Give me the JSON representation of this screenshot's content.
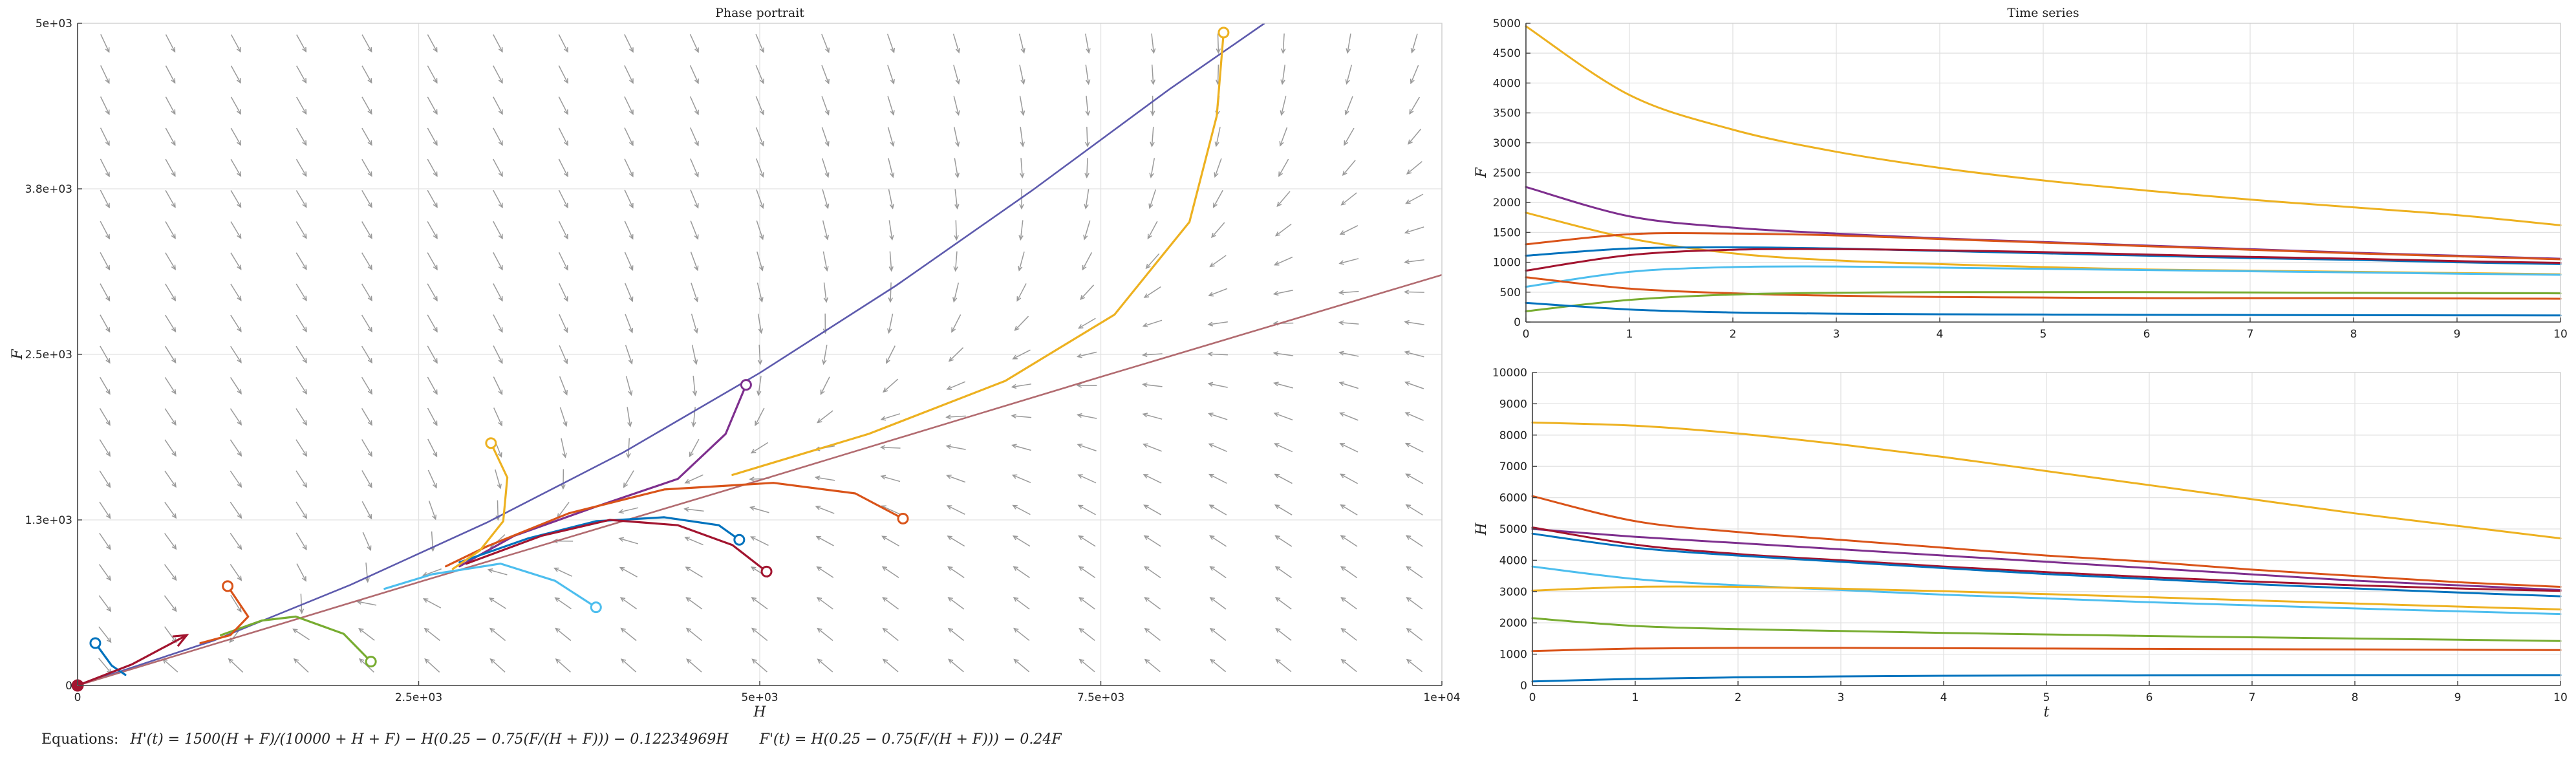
{
  "equations": {
    "label": "Equations:",
    "h_prime": "H'(t) = 1500(H + F)/(10000 + H + F) − H(0.25 − 0.75(F/(H + F))) − 0.12234969H",
    "f_prime": "F'(t) = H(0.25 − 0.75(F/(H + F))) − 0.24F"
  },
  "colors": {
    "blue": "#0072BD",
    "orange": "#D95319",
    "yellow": "#EDB120",
    "purple": "#7E2F8E",
    "green": "#77AC30",
    "cyan": "#4DBEEE",
    "darkred": "#A2142F",
    "nullcline_h": "#5d5aad",
    "nullcline_f": "#b26b70",
    "arrows": "#9a9a9a"
  },
  "chart_data": [
    {
      "type": "line",
      "title": "Phase portrait",
      "xlabel": "H",
      "ylabel": "F",
      "xlim": [
        0,
        10000
      ],
      "ylim": [
        0,
        5000
      ],
      "x_ticks": [
        "0",
        "2.5e+03",
        "5e+03",
        "7.5e+03",
        "1e+04"
      ],
      "y_ticks": [
        "0",
        "1.3e+03",
        "2.5e+03",
        "3.8e+03",
        "5e+03"
      ],
      "grid": true,
      "vector_field": true,
      "nullclines": [
        {
          "color": "nullcline_h",
          "points": [
            [
              0,
              0
            ],
            [
              1000,
              340
            ],
            [
              2000,
              760
            ],
            [
              3000,
              1230
            ],
            [
              4000,
              1760
            ],
            [
              5000,
              2360
            ],
            [
              6000,
              3020
            ],
            [
              7000,
              3740
            ],
            [
              8000,
              4500
            ],
            [
              8700,
              5000
            ]
          ]
        },
        {
          "color": "nullcline_f",
          "points": [
            [
              0,
              0
            ],
            [
              2500,
              780
            ],
            [
              5000,
              1550
            ],
            [
              7500,
              2330
            ],
            [
              10000,
              3100
            ]
          ]
        }
      ],
      "trajectories": [
        {
          "color": "yellow",
          "start": [
            8400,
            4930
          ],
          "points": [
            [
              8400,
              4930
            ],
            [
              8350,
              4300
            ],
            [
              8150,
              3500
            ],
            [
              7600,
              2800
            ],
            [
              6800,
              2300
            ],
            [
              5800,
              1900
            ],
            [
              4800,
              1590
            ]
          ]
        },
        {
          "color": "purple",
          "start": [
            4900,
            2270
          ],
          "points": [
            [
              4900,
              2270
            ],
            [
              4750,
              1900
            ],
            [
              4400,
              1560
            ],
            [
              3800,
              1350
            ],
            [
              3200,
              1130
            ],
            [
              2800,
              900
            ]
          ]
        },
        {
          "color": "orange",
          "start": [
            6050,
            1260
          ],
          "points": [
            [
              6050,
              1260
            ],
            [
              5700,
              1450
            ],
            [
              5100,
              1530
            ],
            [
              4300,
              1480
            ],
            [
              3600,
              1300
            ],
            [
              3000,
              1050
            ],
            [
              2700,
              900
            ]
          ]
        },
        {
          "color": "blue",
          "start": [
            4850,
            1100
          ],
          "points": [
            [
              4850,
              1100
            ],
            [
              4700,
              1210
            ],
            [
              4300,
              1270
            ],
            [
              3800,
              1240
            ],
            [
              3300,
              1110
            ],
            [
              2800,
              930
            ]
          ]
        },
        {
          "color": "darkred",
          "start": [
            5050,
            860
          ],
          "points": [
            [
              5050,
              860
            ],
            [
              4800,
              1060
            ],
            [
              4400,
              1210
            ],
            [
              3900,
              1250
            ],
            [
              3400,
              1130
            ],
            [
              2850,
              920
            ]
          ]
        },
        {
          "color": "yellow",
          "start": [
            3030,
            1830
          ],
          "points": [
            [
              3030,
              1830
            ],
            [
              3150,
              1570
            ],
            [
              3120,
              1240
            ],
            [
              2950,
              1020
            ],
            [
              2750,
              880
            ]
          ]
        },
        {
          "color": "cyan",
          "start": [
            3800,
            590
          ],
          "points": [
            [
              3800,
              590
            ],
            [
              3500,
              790
            ],
            [
              3100,
              920
            ],
            [
              2600,
              840
            ],
            [
              2250,
              730
            ]
          ]
        },
        {
          "color": "green",
          "start": [
            2150,
            180
          ],
          "points": [
            [
              2150,
              180
            ],
            [
              1950,
              390
            ],
            [
              1600,
              520
            ],
            [
              1350,
              490
            ],
            [
              1050,
              380
            ]
          ]
        },
        {
          "color": "orange",
          "start": [
            1100,
            750
          ],
          "points": [
            [
              1100,
              750
            ],
            [
              1250,
              520
            ],
            [
              1120,
              380
            ],
            [
              900,
              320
            ]
          ]
        },
        {
          "color": "blue",
          "start": [
            130,
            320
          ],
          "points": [
            [
              130,
              320
            ],
            [
              250,
              150
            ],
            [
              350,
              80
            ]
          ]
        },
        {
          "color": "darkred",
          "start": [
            0,
            0
          ],
          "points": [
            [
              0,
              0
            ],
            [
              400,
              160
            ],
            [
              800,
              380
            ]
          ],
          "arrow": true
        }
      ]
    },
    {
      "type": "line",
      "title": "Time series",
      "xlabel": "",
      "ylabel": "F",
      "xlim": [
        0,
        10
      ],
      "ylim": [
        0,
        5000
      ],
      "x_ticks": [
        "0",
        "1",
        "2",
        "3",
        "4",
        "5",
        "6",
        "7",
        "8",
        "9",
        "10"
      ],
      "y_ticks": [
        "0",
        "500",
        "1000",
        "1500",
        "2000",
        "2500",
        "3000",
        "3500",
        "4000",
        "4500",
        "5000"
      ],
      "x": [
        0,
        1,
        2,
        3,
        4,
        5,
        6,
        7,
        8,
        9,
        10
      ],
      "series": [
        {
          "color": "yellow",
          "values": [
            4950,
            3800,
            3220,
            2850,
            2580,
            2370,
            2200,
            2050,
            1920,
            1790,
            1620
          ]
        },
        {
          "color": "purple",
          "values": [
            2260,
            1770,
            1580,
            1480,
            1400,
            1340,
            1280,
            1220,
            1160,
            1110,
            1060
          ]
        },
        {
          "color": "yellow",
          "values": [
            1830,
            1400,
            1150,
            1030,
            970,
            920,
            880,
            860,
            840,
            820,
            800
          ]
        },
        {
          "color": "orange",
          "values": [
            1300,
            1470,
            1480,
            1450,
            1390,
            1330,
            1270,
            1210,
            1150,
            1100,
            1050
          ]
        },
        {
          "color": "blue",
          "values": [
            1110,
            1230,
            1250,
            1230,
            1190,
            1150,
            1110,
            1070,
            1040,
            1000,
            970
          ]
        },
        {
          "color": "darkred",
          "values": [
            860,
            1120,
            1210,
            1220,
            1200,
            1170,
            1130,
            1090,
            1060,
            1020,
            990
          ]
        },
        {
          "color": "cyan",
          "values": [
            590,
            840,
            920,
            930,
            910,
            890,
            870,
            850,
            830,
            810,
            790
          ]
        },
        {
          "color": "orange",
          "values": [
            750,
            560,
            480,
            440,
            420,
            410,
            400,
            400,
            400,
            395,
            390
          ]
        },
        {
          "color": "green",
          "values": [
            180,
            370,
            460,
            490,
            500,
            500,
            500,
            495,
            490,
            485,
            480
          ]
        },
        {
          "color": "blue",
          "values": [
            320,
            210,
            160,
            140,
            130,
            125,
            120,
            118,
            115,
            113,
            110
          ]
        }
      ]
    },
    {
      "type": "line",
      "title": "",
      "xlabel": "t",
      "ylabel": "H",
      "xlim": [
        0,
        10
      ],
      "ylim": [
        0,
        10000
      ],
      "x_ticks": [
        "0",
        "1",
        "2",
        "3",
        "4",
        "5",
        "6",
        "7",
        "8",
        "9",
        "10"
      ],
      "y_ticks": [
        "0",
        "1000",
        "2000",
        "3000",
        "4000",
        "5000",
        "6000",
        "7000",
        "8000",
        "9000",
        "10000"
      ],
      "x": [
        0,
        1,
        2,
        3,
        4,
        5,
        6,
        7,
        8,
        9,
        10
      ],
      "series": [
        {
          "color": "yellow",
          "values": [
            8400,
            8300,
            8050,
            7700,
            7300,
            6850,
            6400,
            5950,
            5500,
            5100,
            4700
          ]
        },
        {
          "color": "orange",
          "values": [
            6050,
            5250,
            4900,
            4650,
            4400,
            4150,
            3950,
            3700,
            3500,
            3300,
            3150
          ]
        },
        {
          "color": "purple",
          "values": [
            5000,
            4750,
            4550,
            4350,
            4150,
            3950,
            3750,
            3550,
            3350,
            3200,
            3050
          ]
        },
        {
          "color": "darkred",
          "values": [
            5050,
            4500,
            4200,
            4000,
            3800,
            3620,
            3460,
            3320,
            3200,
            3100,
            3020
          ]
        },
        {
          "color": "blue",
          "values": [
            4850,
            4400,
            4150,
            3950,
            3750,
            3560,
            3400,
            3240,
            3100,
            2970,
            2850
          ]
        },
        {
          "color": "cyan",
          "values": [
            3800,
            3400,
            3200,
            3050,
            2900,
            2780,
            2660,
            2560,
            2460,
            2370,
            2280
          ]
        },
        {
          "color": "yellow",
          "values": [
            3030,
            3150,
            3150,
            3090,
            3010,
            2920,
            2820,
            2720,
            2620,
            2520,
            2430
          ]
        },
        {
          "color": "green",
          "values": [
            2150,
            1900,
            1800,
            1740,
            1680,
            1630,
            1580,
            1540,
            1500,
            1460,
            1420
          ]
        },
        {
          "color": "orange",
          "values": [
            1100,
            1180,
            1200,
            1200,
            1190,
            1180,
            1170,
            1160,
            1150,
            1140,
            1130
          ]
        },
        {
          "color": "blue",
          "values": [
            130,
            210,
            260,
            290,
            310,
            320,
            325,
            330,
            330,
            330,
            330
          ]
        }
      ]
    }
  ]
}
